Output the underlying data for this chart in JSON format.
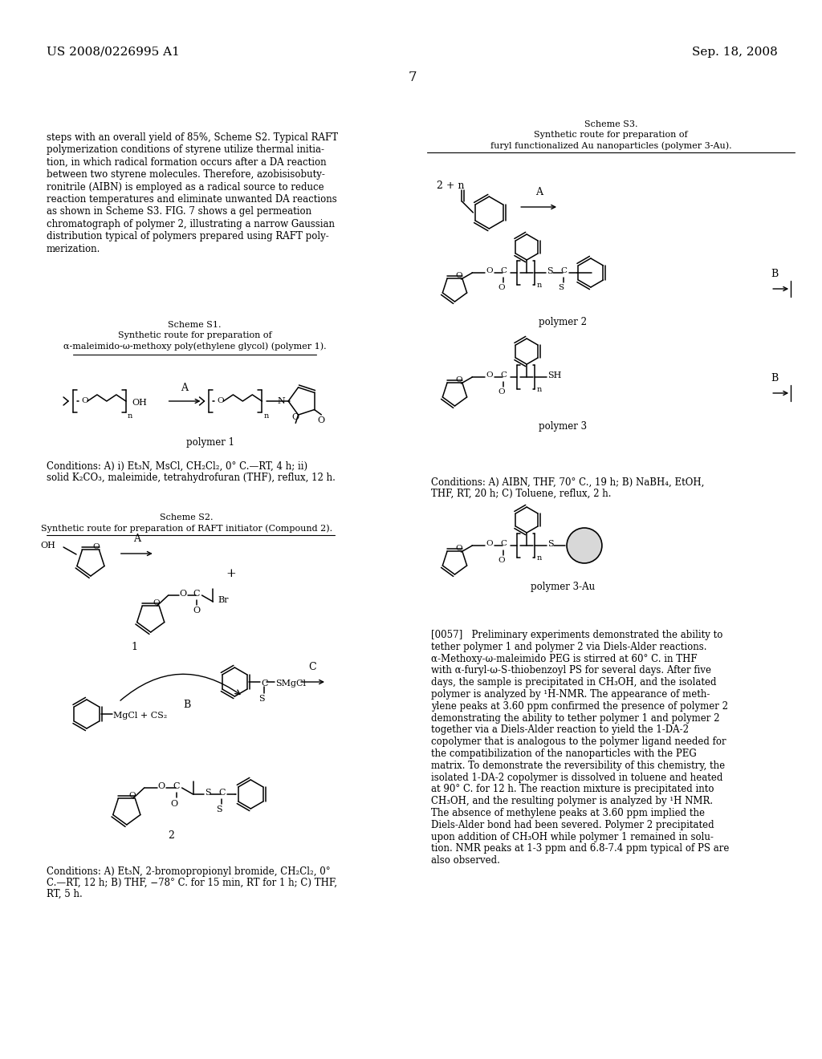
{
  "bg": "#ffffff",
  "header_left": "US 2008/0226995 A1",
  "header_right": "Sep. 18, 2008",
  "page_num": "7",
  "body_lines": [
    "steps with an overall yield of 85%, Scheme S2. Typical RAFT",
    "polymerization conditions of styrene utilize thermal initia-",
    "tion, in which radical formation occurs after a DA reaction",
    "between two styrene molecules. Therefore, azobisisobuty-",
    "ronitrile (AIBN) is employed as a radical source to reduce",
    "reaction temperatures and eliminate unwanted DA reactions",
    "as shown in Scheme S3. FIG. 7 shows a gel permeation",
    "chromatograph of polymer 2, illustrating a narrow Gaussian",
    "distribution typical of polymers prepared using RAFT poly-",
    "merization."
  ],
  "s1_title": [
    "Scheme S1.",
    "Synthetic route for preparation of",
    "α-maleimido-ω-methoxy poly(ethylene glycol) (polymer 1)."
  ],
  "cond_s1": [
    "Conditions: A) i) Et₃N, MsCl, CH₂Cl₂, 0° C.—RT, 4 h; ii)",
    "solid K₂CO₃, maleimide, tetrahydrofuran (THF), reflux, 12 h."
  ],
  "s2_title": [
    "Scheme S2.",
    "Synthetic route for preparation of RAFT initiator (Compound 2)."
  ],
  "cond_s2": [
    "Conditions: A) Et₃N, 2-bromopropionyl bromide, CH₂Cl₂, 0°",
    "C.—RT, 12 h; B) THF, −78° C. for 15 min, RT for 1 h; C) THF,",
    "RT, 5 h."
  ],
  "s3_title": [
    "Scheme S3.",
    "Synthetic route for preparation of",
    "furyl functionalized Au nanoparticles (polymer 3-Au)."
  ],
  "cond_s3": [
    "Conditions: A) AIBN, THF, 70° C., 19 h; B) NaBH₄, EtOH,",
    "THF, RT, 20 h; C) Toluene, reflux, 2 h."
  ],
  "p57_lines": [
    "[0057]   Preliminary experiments demonstrated the ability to",
    "tether polymer 1 and polymer 2 via Diels-Alder reactions.",
    "α-Methoxy-ω-maleimido PEG is stirred at 60° C. in THF",
    "with α-furyl-ω-S-thiobenzoyl PS for several days. After five",
    "days, the sample is precipitated in CH₃OH, and the isolated",
    "polymer is analyzed by ¹H-NMR. The appearance of meth-",
    "ylene peaks at 3.60 ppm confirmed the presence of polymer 2",
    "demonstrating the ability to tether polymer 1 and polymer 2",
    "together via a Diels-Alder reaction to yield the 1-DA-2",
    "copolymer that is analogous to the polymer ligand needed for",
    "the compatibilization of the nanoparticles with the PEG",
    "matrix. To demonstrate the reversibility of this chemistry, the",
    "isolated 1-DA-2 copolymer is dissolved in toluene and heated",
    "at 90° C. for 12 h. The reaction mixture is precipitated into",
    "CH₃OH, and the resulting polymer is analyzed by ¹H NMR.",
    "The absence of methylene peaks at 3.60 ppm implied the",
    "Diels-Alder bond had been severed. Polymer 2 precipitated",
    "upon addition of CH₃OH while polymer 1 remained in solu-",
    "tion. NMR peaks at 1-3 ppm and 6.8-7.4 ppm typical of PS are",
    "also observed."
  ]
}
